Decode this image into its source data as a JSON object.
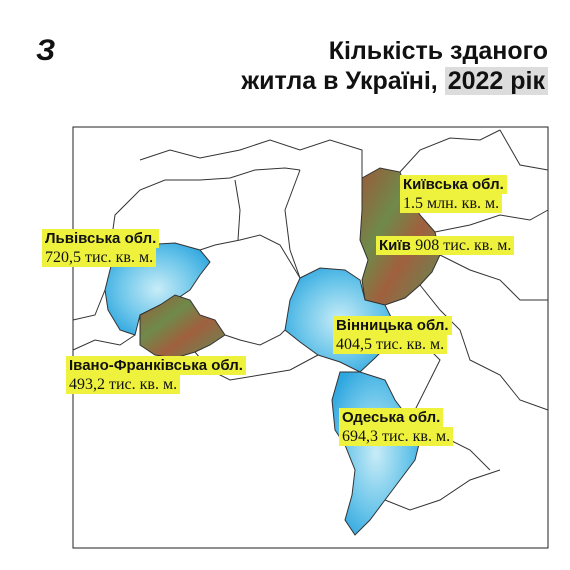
{
  "logo": "З",
  "header": {
    "title_line1": "Кількість зданого",
    "title_line2": "житла в Україні,",
    "title_highlight": "2022 рік"
  },
  "regions": [
    {
      "name": "Київська обл.",
      "value": "1.5 млн. кв. м."
    },
    {
      "name": "Київ",
      "value": "908 тис. кв. м."
    },
    {
      "name": "Львівська обл.",
      "value": "720,5 тис. кв. м."
    },
    {
      "name": "Вінницька обл.",
      "value": "404,5 тис. кв. м."
    },
    {
      "name": "Івано-Франківська обл.",
      "value": "493,2 тис. кв. м."
    },
    {
      "name": "Одеська обл.",
      "value": "694,3 тис. кв. м."
    }
  ]
}
